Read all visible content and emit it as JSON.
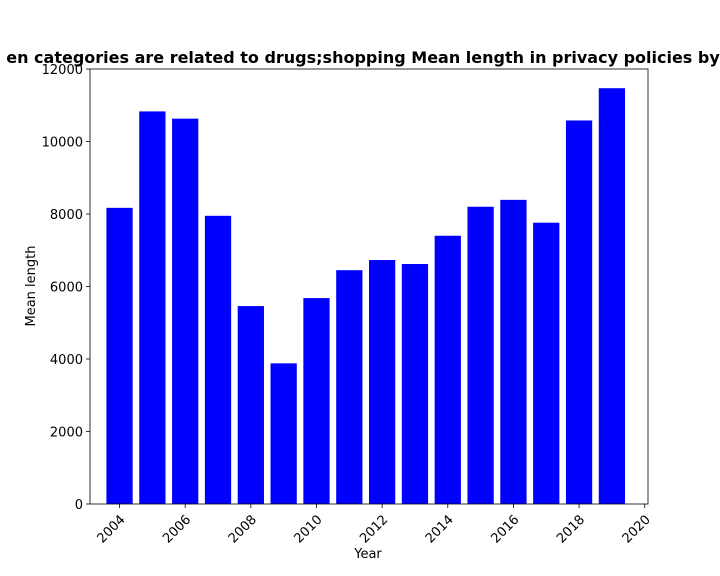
{
  "chart_data": {
    "type": "bar",
    "title": "en categories are related to drugs;shopping Mean length in privacy policies by",
    "xlabel": "Year",
    "ylabel": "Mean length",
    "x": [
      2004,
      2005,
      2006,
      2007,
      2008,
      2009,
      2010,
      2011,
      2012,
      2013,
      2014,
      2015,
      2016,
      2017,
      2018,
      2019
    ],
    "values": [
      8170,
      10830,
      10630,
      7950,
      5460,
      3880,
      5680,
      6450,
      6730,
      6620,
      7400,
      8200,
      8390,
      7760,
      10580,
      11470
    ],
    "xlim": [
      2003.1,
      2020.1
    ],
    "ylim": [
      0,
      12000
    ],
    "xticks": [
      "2004",
      "2006",
      "2008",
      "2010",
      "2012",
      "2014",
      "2016",
      "2018",
      "2020"
    ],
    "yticks": [
      "0",
      "2000",
      "4000",
      "6000",
      "8000",
      "10000",
      "12000"
    ],
    "bar_color": "#0000ff",
    "grid": false,
    "legend": "none"
  }
}
